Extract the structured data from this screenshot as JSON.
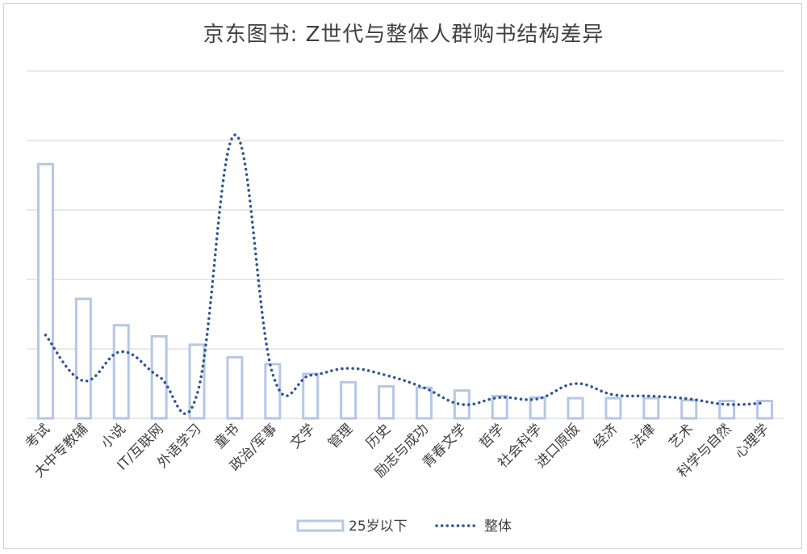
{
  "chart_data": {
    "type": "bar",
    "title": "京东图书: Z世代与整体人群购书结构差异",
    "categories": [
      "考试",
      "大中专教辅",
      "小说",
      "IT/互联网",
      "外语学习",
      "童书",
      "政治/军事",
      "文学",
      "管理",
      "历史",
      "励志与成功",
      "青春文学",
      "哲学",
      "社会科学",
      "进口原版",
      "经济",
      "法律",
      "艺术",
      "科学与自然",
      "心理学"
    ],
    "series": [
      {
        "name": "25岁以下",
        "type": "bar",
        "color": "#b4c7e7",
        "values": [
          18.3,
          8.6,
          6.7,
          5.9,
          5.3,
          4.4,
          3.9,
          3.2,
          2.6,
          2.3,
          2.2,
          2.0,
          1.6,
          1.5,
          1.45,
          1.45,
          1.45,
          1.3,
          1.25,
          1.25
        ]
      },
      {
        "name": "整体",
        "type": "line",
        "style": "dotted",
        "color": "#2e5597",
        "values": [
          6.0,
          2.7,
          4.8,
          3.0,
          1.7,
          20.4,
          3.2,
          3.1,
          3.6,
          3.1,
          2.2,
          1.0,
          1.5,
          1.4,
          2.5,
          1.7,
          1.6,
          1.4,
          1.0,
          1.1
        ]
      }
    ],
    "ylim": [
      0,
      25
    ],
    "ygrid_step": 5,
    "grid": true,
    "legend_position": "bottom"
  }
}
